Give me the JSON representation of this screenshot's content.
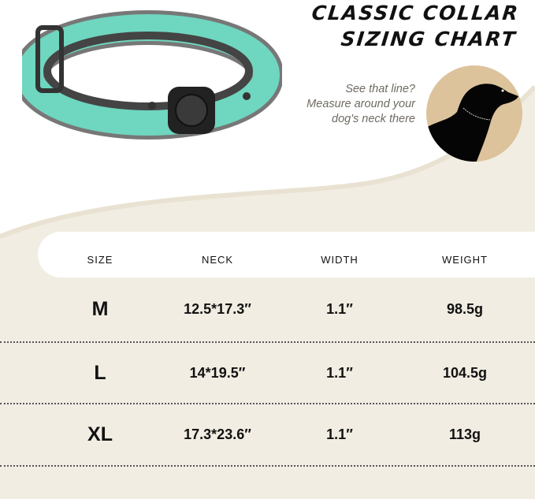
{
  "title": {
    "line1": "CLASSIC COLLAR",
    "line2": "SIZING CHART"
  },
  "hint": {
    "line1": "See that line?",
    "line2": "Measure around your",
    "line3": "dog's neck there"
  },
  "colors": {
    "collar": "#6fd6bf",
    "background": "#f1ede3",
    "circle": "#dcc39c"
  },
  "table": {
    "headers": [
      "SIZE",
      "NECK",
      "WIDTH",
      "WEIGHT"
    ],
    "rows": [
      {
        "size": "M",
        "neck": "12.5*17.3″",
        "width": "1.1″",
        "weight": "98.5g"
      },
      {
        "size": "L",
        "neck": "14*19.5″",
        "width": "1.1″",
        "weight": "104.5g"
      },
      {
        "size": "XL",
        "neck": "17.3*23.6″",
        "width": "1.1″",
        "weight": "113g"
      }
    ]
  }
}
